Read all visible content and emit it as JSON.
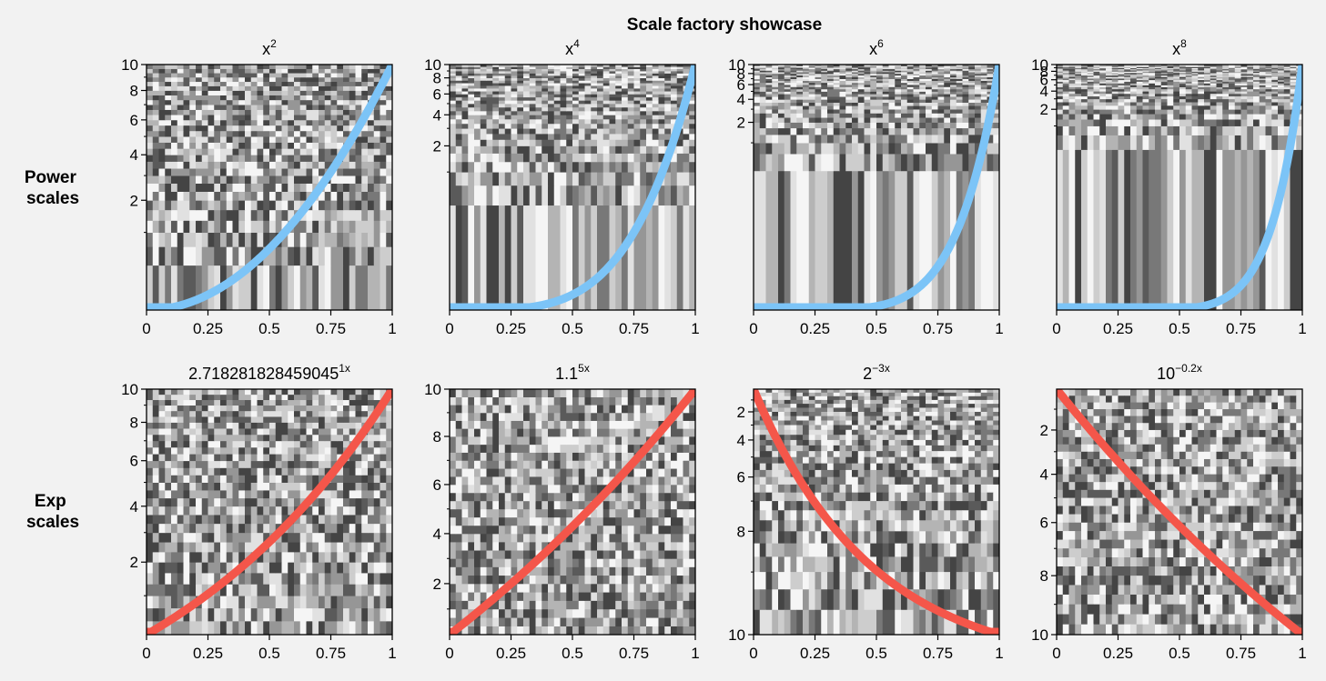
{
  "figure": {
    "suptitle": "Scale factory showcase",
    "row_labels": [
      [
        "Power",
        "scales"
      ],
      [
        "Exp",
        "scales"
      ]
    ]
  },
  "colors": {
    "background": "#f2f2f2",
    "power_curve": "#7cc4f7",
    "exp_curve": "#f4564a"
  },
  "chart_data": [
    {
      "type": "heatmap",
      "overlay": "line",
      "row": 0,
      "col": 0,
      "title": {
        "base": "x",
        "exp": "2"
      },
      "series": [
        {
          "kind": "power",
          "exponent": 2,
          "color": "#7cc4f7"
        }
      ],
      "x": [
        0,
        0.1,
        0.2,
        0.3,
        0.4,
        0.5,
        0.6,
        0.7,
        0.8,
        0.9,
        1
      ],
      "y": [
        0,
        0.1,
        0.4,
        0.9,
        1.6,
        2.5,
        3.6,
        4.9,
        6.4,
        8.1,
        10
      ],
      "xlim": [
        0,
        1
      ],
      "ylim": [
        0,
        10
      ],
      "xticks": [
        "0",
        "0.25",
        "0.5",
        "0.75",
        "1"
      ],
      "yticks": [
        {
          "v": 2,
          "label": "2"
        },
        {
          "v": 4,
          "label": "4"
        },
        {
          "v": 6,
          "label": "6"
        },
        {
          "v": 8,
          "label": "8"
        },
        {
          "v": 10,
          "label": "10"
        }
      ],
      "minor_yticks": [
        1,
        3,
        5,
        7,
        9
      ],
      "yscale": "power",
      "yscale_param": 2,
      "grid": false
    },
    {
      "type": "heatmap",
      "overlay": "line",
      "row": 0,
      "col": 1,
      "title": {
        "base": "x",
        "exp": "4"
      },
      "series": [
        {
          "kind": "power",
          "exponent": 4,
          "color": "#7cc4f7"
        }
      ],
      "x": [
        0,
        0.1,
        0.2,
        0.3,
        0.4,
        0.5,
        0.6,
        0.7,
        0.8,
        0.9,
        1
      ],
      "y": [
        0,
        0.001,
        0.016,
        0.081,
        0.256,
        0.625,
        1.296,
        2.401,
        4.096,
        6.561,
        10
      ],
      "xlim": [
        0,
        1
      ],
      "ylim": [
        0,
        10
      ],
      "xticks": [
        "0",
        "0.25",
        "0.5",
        "0.75",
        "1"
      ],
      "yticks": [
        {
          "v": 2,
          "label": "2"
        },
        {
          "v": 4,
          "label": "4"
        },
        {
          "v": 6,
          "label": "6"
        },
        {
          "v": 8,
          "label": "8"
        },
        {
          "v": 10,
          "label": "10"
        }
      ],
      "minor_yticks": [
        1,
        3,
        5,
        7,
        9
      ],
      "yscale": "power",
      "yscale_param": 4,
      "grid": false
    },
    {
      "type": "heatmap",
      "overlay": "line",
      "row": 0,
      "col": 2,
      "title": {
        "base": "x",
        "exp": "6"
      },
      "series": [
        {
          "kind": "power",
          "exponent": 6,
          "color": "#7cc4f7"
        }
      ],
      "x": [
        0,
        0.1,
        0.2,
        0.3,
        0.4,
        0.5,
        0.6,
        0.7,
        0.8,
        0.9,
        1
      ],
      "y": [
        0,
        0,
        0.001,
        0.007,
        0.041,
        0.156,
        0.467,
        1.176,
        2.621,
        5.314,
        10
      ],
      "xlim": [
        0,
        1
      ],
      "ylim": [
        0,
        10
      ],
      "xticks": [
        "0",
        "0.25",
        "0.5",
        "0.75",
        "1"
      ],
      "yticks": [
        {
          "v": 2,
          "label": "2"
        },
        {
          "v": 4,
          "label": "4"
        },
        {
          "v": 6,
          "label": "6"
        },
        {
          "v": 8,
          "label": "8"
        },
        {
          "v": 10,
          "label": "10"
        }
      ],
      "minor_yticks": [
        1,
        3,
        5,
        7,
        9
      ],
      "yscale": "power",
      "yscale_param": 6,
      "grid": false
    },
    {
      "type": "heatmap",
      "overlay": "line",
      "row": 0,
      "col": 3,
      "title": {
        "base": "x",
        "exp": "8"
      },
      "series": [
        {
          "kind": "power",
          "exponent": 8,
          "color": "#7cc4f7"
        }
      ],
      "x": [
        0,
        0.1,
        0.2,
        0.3,
        0.4,
        0.5,
        0.6,
        0.7,
        0.8,
        0.9,
        1
      ],
      "y": [
        0,
        0,
        0,
        0.001,
        0.007,
        0.039,
        0.168,
        0.576,
        1.678,
        4.305,
        10
      ],
      "xlim": [
        0,
        1
      ],
      "ylim": [
        0,
        10
      ],
      "xticks": [
        "0",
        "0.25",
        "0.5",
        "0.75",
        "1"
      ],
      "yticks": [
        {
          "v": 2,
          "label": "2"
        },
        {
          "v": 4,
          "label": "4"
        },
        {
          "v": 6,
          "label": "6"
        },
        {
          "v": 8,
          "label": "8"
        },
        {
          "v": 10,
          "label": "10"
        }
      ],
      "minor_yticks": [
        1,
        3,
        5,
        7,
        9
      ],
      "yscale": "power",
      "yscale_param": 8,
      "grid": false
    },
    {
      "type": "heatmap",
      "overlay": "line",
      "row": 1,
      "col": 0,
      "title": {
        "base": "2.718281828459045",
        "exp": "1x"
      },
      "series": [
        {
          "kind": "exp",
          "base": 2.718281828459045,
          "rate": 1,
          "color": "#f4564a"
        }
      ],
      "x": [
        0,
        0.1,
        0.2,
        0.3,
        0.4,
        0.5,
        0.6,
        0.7,
        0.8,
        0.9,
        1
      ],
      "y": [
        0,
        0.001,
        0.001,
        0.004,
        0.01,
        0.026,
        0.07,
        0.19,
        0.52,
        1.41,
        10
      ],
      "xlim": [
        0,
        1
      ],
      "ylim": [
        0,
        10
      ],
      "xticks": [
        "0",
        "0.25",
        "0.5",
        "0.75",
        "1"
      ],
      "yticks": [
        {
          "v": 2,
          "label": "2"
        },
        {
          "v": 4,
          "label": "4"
        },
        {
          "v": 6,
          "label": "6"
        },
        {
          "v": 8,
          "label": "8"
        },
        {
          "v": 10,
          "label": "10"
        }
      ],
      "minor_yticks": [
        1,
        3,
        5,
        7,
        9
      ],
      "yscale": "exp",
      "yscale_param": 2.718281828459045,
      "grid": false
    },
    {
      "type": "heatmap",
      "overlay": "line",
      "row": 1,
      "col": 1,
      "title": {
        "base": "1.1",
        "exp": "5x"
      },
      "series": [
        {
          "kind": "exp",
          "base": 1.1,
          "rate": 5,
          "color": "#f4564a"
        }
      ],
      "x": [
        0,
        0.1,
        0.2,
        0.3,
        0.4,
        0.5,
        0.6,
        0.7,
        0.8,
        0.9,
        1
      ],
      "y": [
        0,
        0.08,
        0.2,
        0.4,
        0.7,
        1.1,
        1.8,
        2.7,
        4.1,
        6.4,
        10
      ],
      "xlim": [
        0,
        1
      ],
      "ylim": [
        0,
        10
      ],
      "xticks": [
        "0",
        "0.25",
        "0.5",
        "0.75",
        "1"
      ],
      "yticks": [
        {
          "v": 2,
          "label": "2"
        },
        {
          "v": 4,
          "label": "4"
        },
        {
          "v": 6,
          "label": "6"
        },
        {
          "v": 8,
          "label": "8"
        },
        {
          "v": 10,
          "label": "10"
        }
      ],
      "minor_yticks": [
        1,
        3,
        5,
        7,
        9
      ],
      "yscale": "exp",
      "yscale_param": 1.1,
      "grid": false
    },
    {
      "type": "heatmap",
      "overlay": "line",
      "row": 1,
      "col": 2,
      "title": {
        "base": "2",
        "exp": "−3x"
      },
      "series": [
        {
          "kind": "exp",
          "base": 2,
          "rate": -3,
          "color": "#f4564a"
        }
      ],
      "x": [
        0,
        0.05,
        0.1,
        0.15,
        0.2,
        0.3,
        0.5,
        0.75,
        1
      ],
      "y": [
        10,
        3.5,
        1.3,
        0.5,
        0.15,
        0.02,
        0,
        0,
        0
      ],
      "xlim": [
        0,
        1
      ],
      "ylim": [
        0,
        10
      ],
      "xticks": [
        "0",
        "0.25",
        "0.5",
        "0.75",
        "1"
      ],
      "yticks": [
        {
          "v": 10,
          "label": "10"
        },
        {
          "v": 8,
          "label": "8"
        },
        {
          "v": 6,
          "label": "6"
        },
        {
          "v": 4,
          "label": "4"
        },
        {
          "v": 2,
          "label": "2"
        }
      ],
      "minor_yticks": [
        1,
        3,
        5,
        7,
        9
      ],
      "yscale": "exp",
      "yscale_param": 0.125,
      "grid": false
    },
    {
      "type": "heatmap",
      "overlay": "line",
      "row": 1,
      "col": 3,
      "title": {
        "base": "10",
        "exp": "−0.2x"
      },
      "series": [
        {
          "kind": "exp",
          "base": 10,
          "rate": -0.2,
          "color": "#f4564a"
        }
      ],
      "x": [
        0,
        0.1,
        0.2,
        0.3,
        0.4,
        0.5,
        0.6,
        0.7,
        0.8,
        0.9,
        1
      ],
      "y": [
        10,
        6.9,
        4.7,
        3.2,
        2.1,
        1.4,
        0.9,
        0.55,
        0.3,
        0.13,
        0
      ],
      "xlim": [
        0,
        1
      ],
      "ylim": [
        0,
        10
      ],
      "xticks": [
        "0",
        "0.25",
        "0.5",
        "0.75",
        "1"
      ],
      "yticks": [
        {
          "v": 10,
          "label": "10"
        },
        {
          "v": 8,
          "label": "8"
        },
        {
          "v": 6,
          "label": "6"
        },
        {
          "v": 4,
          "label": "4"
        },
        {
          "v": 2,
          "label": "2"
        }
      ],
      "minor_yticks": [
        1,
        3,
        5,
        7,
        9
      ],
      "yscale": "exp",
      "yscale_param": 0.631,
      "grid": false
    }
  ]
}
